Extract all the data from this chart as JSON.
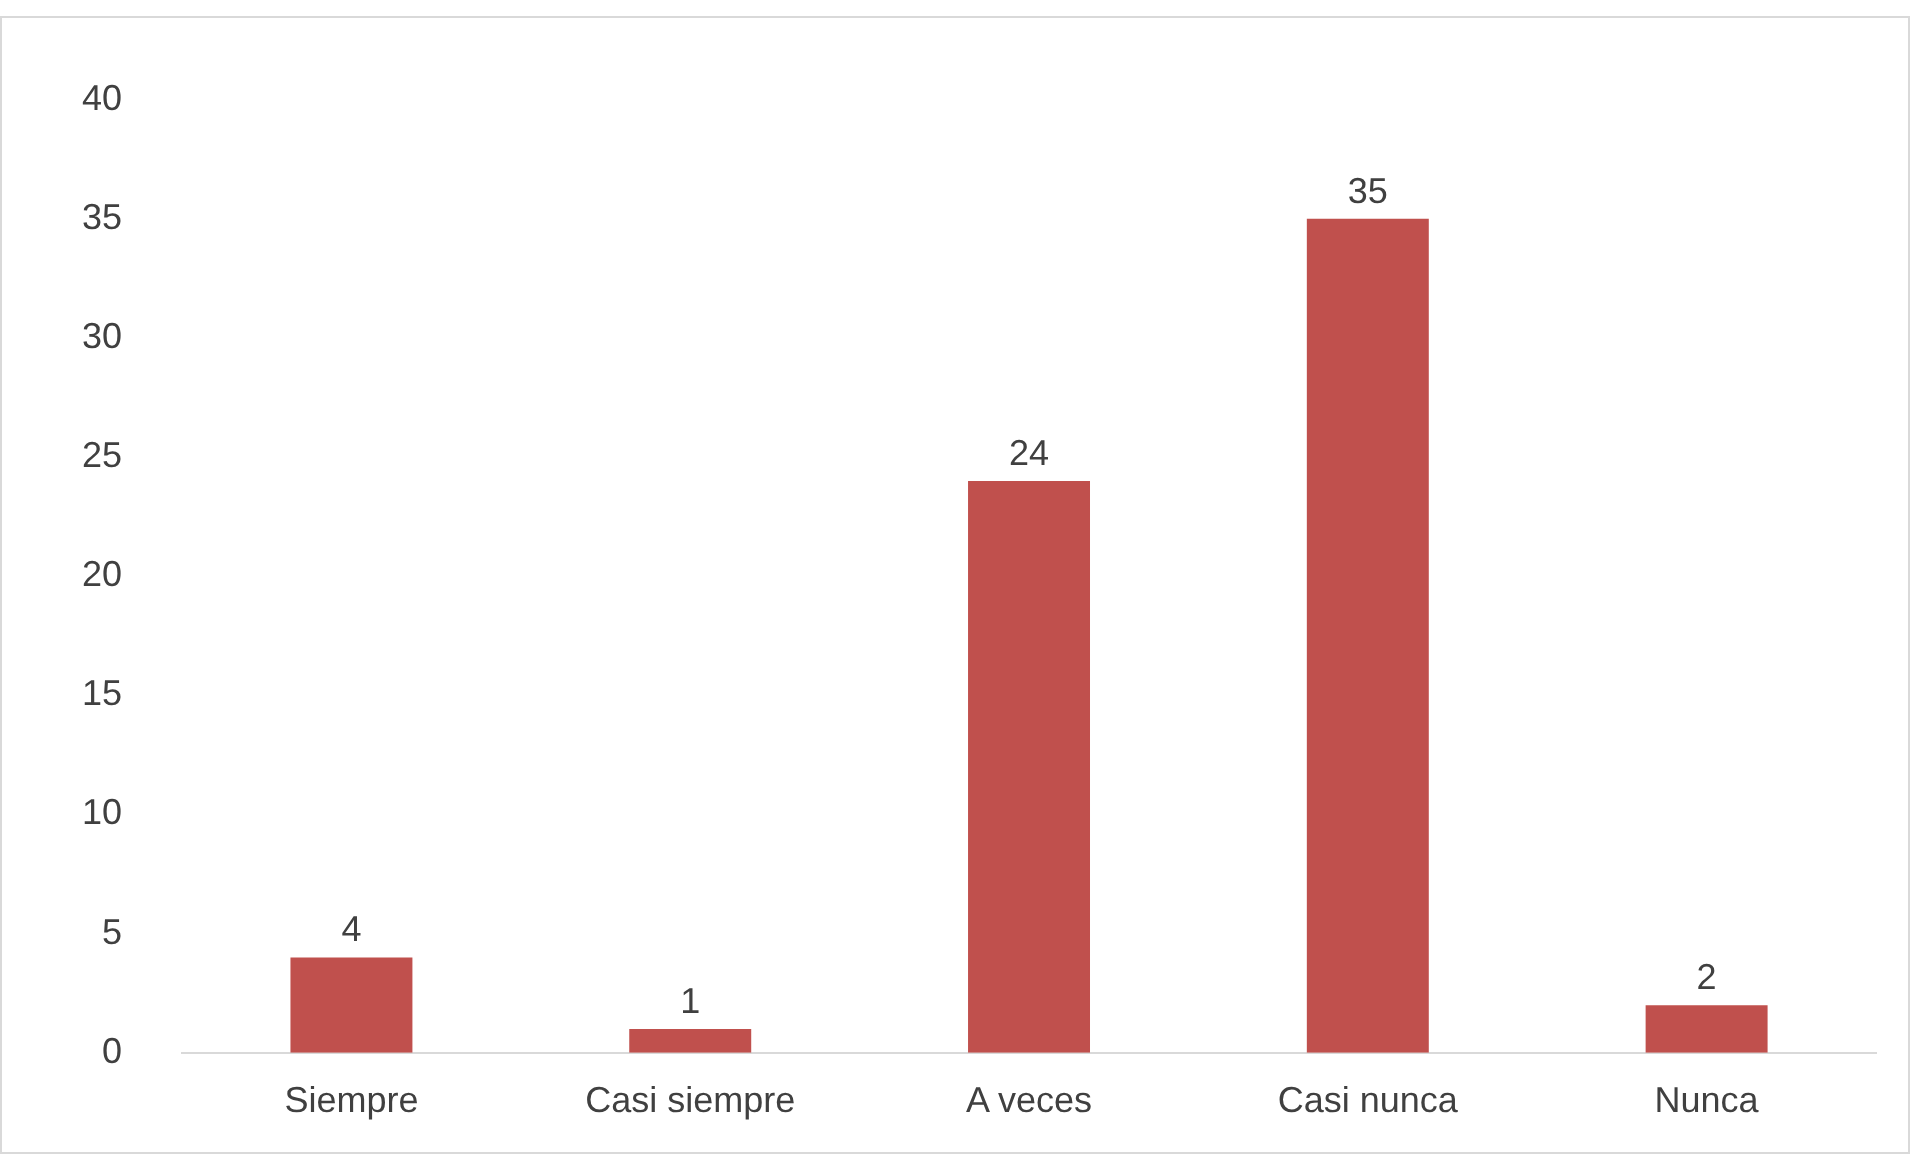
{
  "chart_data": {
    "type": "bar",
    "categories": [
      "Siempre",
      "Casi siempre",
      "A veces",
      "Casi nunca",
      "Nunca"
    ],
    "values": [
      4,
      1,
      24,
      35,
      2
    ],
    "color": "#c0504d",
    "ylim": [
      0,
      40
    ],
    "yticks": [
      0,
      5,
      10,
      15,
      20,
      25,
      30,
      35,
      40
    ],
    "grid": false,
    "data_labels": true
  }
}
